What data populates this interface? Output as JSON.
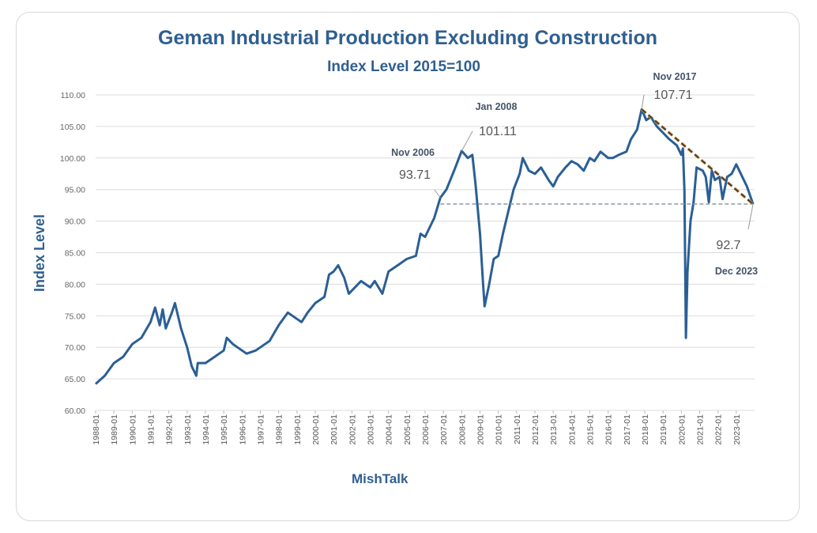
{
  "chart_data": {
    "type": "line",
    "title": "Geman Industrial Production Excluding Construction",
    "subtitle": "Index Level 2015=100",
    "ylabel": "Index Level",
    "xlabel": "",
    "source": "MishTalk",
    "ylim": [
      60,
      110
    ],
    "yticks": [
      "60.00",
      "65.00",
      "70.00",
      "75.00",
      "80.00",
      "85.00",
      "90.00",
      "95.00",
      "100.00",
      "105.00",
      "110.00"
    ],
    "xticks": [
      "1988-01",
      "1989-01",
      "1990-01",
      "1991-01",
      "1992-01",
      "1993-01",
      "1994-01",
      "1995-01",
      "1996-01",
      "1997-01",
      "1998-01",
      "1999-01",
      "2000-01",
      "2001-01",
      "2002-01",
      "2003-01",
      "2004-01",
      "2005-01",
      "2006-01",
      "2007-01",
      "2008-01",
      "2009-01",
      "2010-01",
      "2011-01",
      "2012-01",
      "2013-01",
      "2014-01",
      "2015-01",
      "2016-01",
      "2017-01",
      "2018-01",
      "2019-01",
      "2020-01",
      "2021-01",
      "2022-01",
      "2023-01"
    ],
    "grid": true,
    "line_color": "#2a5f95",
    "series": [
      {
        "x": [
          "1988-01",
          "1988-07",
          "1989-01",
          "1989-07",
          "1990-01",
          "1990-07",
          "1991-01",
          "1991-04",
          "1991-07",
          "1991-09",
          "1991-11",
          "1992-03",
          "1992-05",
          "1992-09",
          "1993-01",
          "1993-04",
          "1993-07",
          "1993-08",
          "1994-01",
          "1994-07",
          "1995-01",
          "1995-03",
          "1995-07",
          "1996-01",
          "1996-04",
          "1996-10",
          "1997-01",
          "1997-07",
          "1998-01",
          "1998-07",
          "1999-01",
          "1999-04",
          "1999-08",
          "2000-01",
          "2000-07",
          "2000-10",
          "2001-01",
          "2001-04",
          "2001-08",
          "2001-11",
          "2002-03",
          "2002-07",
          "2003-01",
          "2003-04",
          "2003-09",
          "2004-01",
          "2004-07",
          "2005-01",
          "2005-07",
          "2005-10",
          "2006-01",
          "2006-07",
          "2006-11",
          "2007-03",
          "2007-08",
          "2008-01",
          "2008-05",
          "2008-08",
          "2008-10",
          "2009-01",
          "2009-03",
          "2009-04",
          "2009-07",
          "2009-10",
          "2010-01",
          "2010-04",
          "2010-08",
          "2010-11",
          "2011-03",
          "2011-05",
          "2011-09",
          "2012-01",
          "2012-05",
          "2012-10",
          "2013-01",
          "2013-04",
          "2013-09",
          "2014-01",
          "2014-05",
          "2014-09",
          "2015-01",
          "2015-04",
          "2015-08",
          "2016-01",
          "2016-04",
          "2016-08",
          "2017-01",
          "2017-04",
          "2017-08",
          "2017-11",
          "2018-02",
          "2018-05",
          "2018-09",
          "2019-01",
          "2019-05",
          "2019-10",
          "2020-01",
          "2020-02",
          "2020-03",
          "2020-04",
          "2020-05",
          "2020-07",
          "2020-09",
          "2020-11",
          "2021-03",
          "2021-05",
          "2021-07",
          "2021-09",
          "2021-11",
          "2022-02",
          "2022-04",
          "2022-07",
          "2022-10",
          "2023-01",
          "2023-04",
          "2023-08",
          "2023-12"
        ],
        "values": [
          64.2,
          65.5,
          67.5,
          68.5,
          70.5,
          71.5,
          74,
          76.3,
          73.5,
          76,
          73,
          75.5,
          77,
          73,
          70,
          67,
          65.5,
          67.5,
          67.5,
          68.5,
          69.5,
          71.5,
          70.5,
          69.5,
          69,
          69.5,
          70,
          71,
          73.5,
          75.5,
          74.5,
          74,
          75.5,
          77,
          78,
          81.5,
          82,
          83,
          81,
          78.5,
          79.5,
          80.5,
          79.5,
          80.5,
          78.5,
          82,
          83,
          84,
          84.5,
          88,
          87.5,
          90.5,
          93.71,
          95,
          98,
          101.11,
          100,
          100.5,
          96,
          88,
          80,
          76.5,
          80,
          84,
          84.5,
          88,
          92,
          95,
          97.5,
          100,
          98,
          97.5,
          98.5,
          96.5,
          95.5,
          97,
          98.5,
          99.5,
          99,
          98,
          100,
          99.5,
          101,
          100,
          100,
          100.5,
          101,
          103,
          104.5,
          107.71,
          106,
          106.5,
          105,
          104,
          103,
          102,
          100.5,
          101.5,
          95,
          71.5,
          82,
          90,
          93,
          98.5,
          98,
          97,
          93,
          98,
          96.5,
          97,
          93.5,
          97,
          97.5,
          99,
          97.5,
          95.5,
          92.7
        ]
      }
    ],
    "annotations": [
      {
        "date_label": "Nov 2006",
        "value_label": "93.71",
        "x": "2006-11",
        "y": 93.71
      },
      {
        "date_label": "Jan 2008",
        "value_label": "101.11",
        "x": "2008-01",
        "y": 101.11
      },
      {
        "date_label": "Nov 2017",
        "value_label": "107.71",
        "x": "2017-11",
        "y": 107.71
      },
      {
        "date_label": "Dec 2023",
        "value_label": "92.7",
        "x": "2023-12",
        "y": 92.7
      }
    ],
    "reference_lines": [
      {
        "kind": "horizontal-dashed",
        "from": "2006-11",
        "to": "2023-12",
        "y": 92.7,
        "color": "#8a9aa8"
      },
      {
        "kind": "trend-dashed",
        "from": [
          "2017-11",
          107.71
        ],
        "to": [
          "2023-12",
          92.7
        ],
        "color": "#c08a3a"
      }
    ]
  }
}
